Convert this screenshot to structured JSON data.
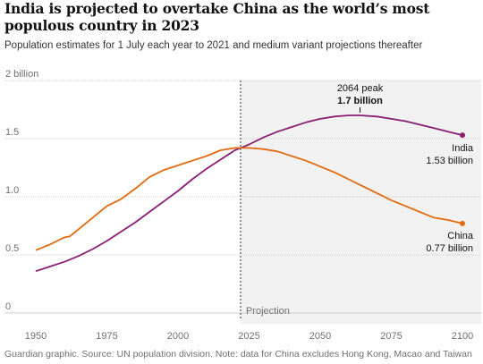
{
  "title": "India is projected to overtake China as the world’s most populous country in 2023",
  "subtitle": "Population estimates for 1 July each year to 2021 and medium variant projections thereafter",
  "source": "Guardian graphic. Source: UN population division. Note: data for China excludes Hong Kong, Macao and Taiwan",
  "colors": {
    "india": "#8a1e73",
    "china": "#e36a0e",
    "projection_shade": "#f2f2f2",
    "grid": "#cfcfcf",
    "text": "#121212",
    "muted": "#707070"
  },
  "chart_data": {
    "type": "line",
    "xlim": [
      1950,
      2100
    ],
    "ylim": [
      0,
      2
    ],
    "x_ticks": [
      1950,
      1975,
      2000,
      2025,
      2050,
      2075,
      2100
    ],
    "y_ticks": [
      {
        "value": 0,
        "label": "0"
      },
      {
        "value": 0.5,
        "label": "0.5"
      },
      {
        "value": 1.0,
        "label": "1.0"
      },
      {
        "value": 1.5,
        "label": "1.5"
      },
      {
        "value": 2.0,
        "label": "2 billion"
      }
    ],
    "projection_start": 2022,
    "projection_label": "Projection",
    "series": [
      {
        "name": "India",
        "color_key": "india",
        "x": [
          1950,
          1955,
          1960,
          1965,
          1970,
          1975,
          1980,
          1985,
          1990,
          1995,
          2000,
          2005,
          2010,
          2015,
          2020,
          2022,
          2025,
          2030,
          2035,
          2040,
          2045,
          2050,
          2055,
          2060,
          2064,
          2070,
          2075,
          2080,
          2085,
          2090,
          2095,
          2100
        ],
        "y": [
          0.36,
          0.4,
          0.44,
          0.49,
          0.55,
          0.62,
          0.7,
          0.78,
          0.87,
          0.96,
          1.05,
          1.15,
          1.24,
          1.32,
          1.4,
          1.42,
          1.45,
          1.51,
          1.56,
          1.6,
          1.64,
          1.67,
          1.69,
          1.7,
          1.7,
          1.69,
          1.67,
          1.65,
          1.62,
          1.59,
          1.56,
          1.53
        ]
      },
      {
        "name": "China",
        "color_key": "china",
        "x": [
          1950,
          1955,
          1960,
          1962,
          1965,
          1970,
          1975,
          1980,
          1985,
          1990,
          1995,
          2000,
          2005,
          2010,
          2015,
          2020,
          2022,
          2025,
          2030,
          2035,
          2040,
          2045,
          2050,
          2055,
          2060,
          2065,
          2070,
          2075,
          2080,
          2085,
          2090,
          2095,
          2100
        ],
        "y": [
          0.54,
          0.59,
          0.65,
          0.66,
          0.72,
          0.82,
          0.92,
          0.98,
          1.07,
          1.17,
          1.23,
          1.27,
          1.31,
          1.35,
          1.4,
          1.42,
          1.42,
          1.42,
          1.41,
          1.39,
          1.35,
          1.31,
          1.26,
          1.21,
          1.15,
          1.09,
          1.03,
          0.97,
          0.92,
          0.87,
          0.82,
          0.8,
          0.77
        ]
      }
    ],
    "annotations": {
      "peak": {
        "x": 2064,
        "y": 1.7,
        "line1": "2064 peak",
        "line2": "1.7 billion"
      },
      "india_end": {
        "name": "India",
        "value": "1.53 billion"
      },
      "china_end": {
        "name": "China",
        "value": "0.77 billion"
      }
    }
  }
}
